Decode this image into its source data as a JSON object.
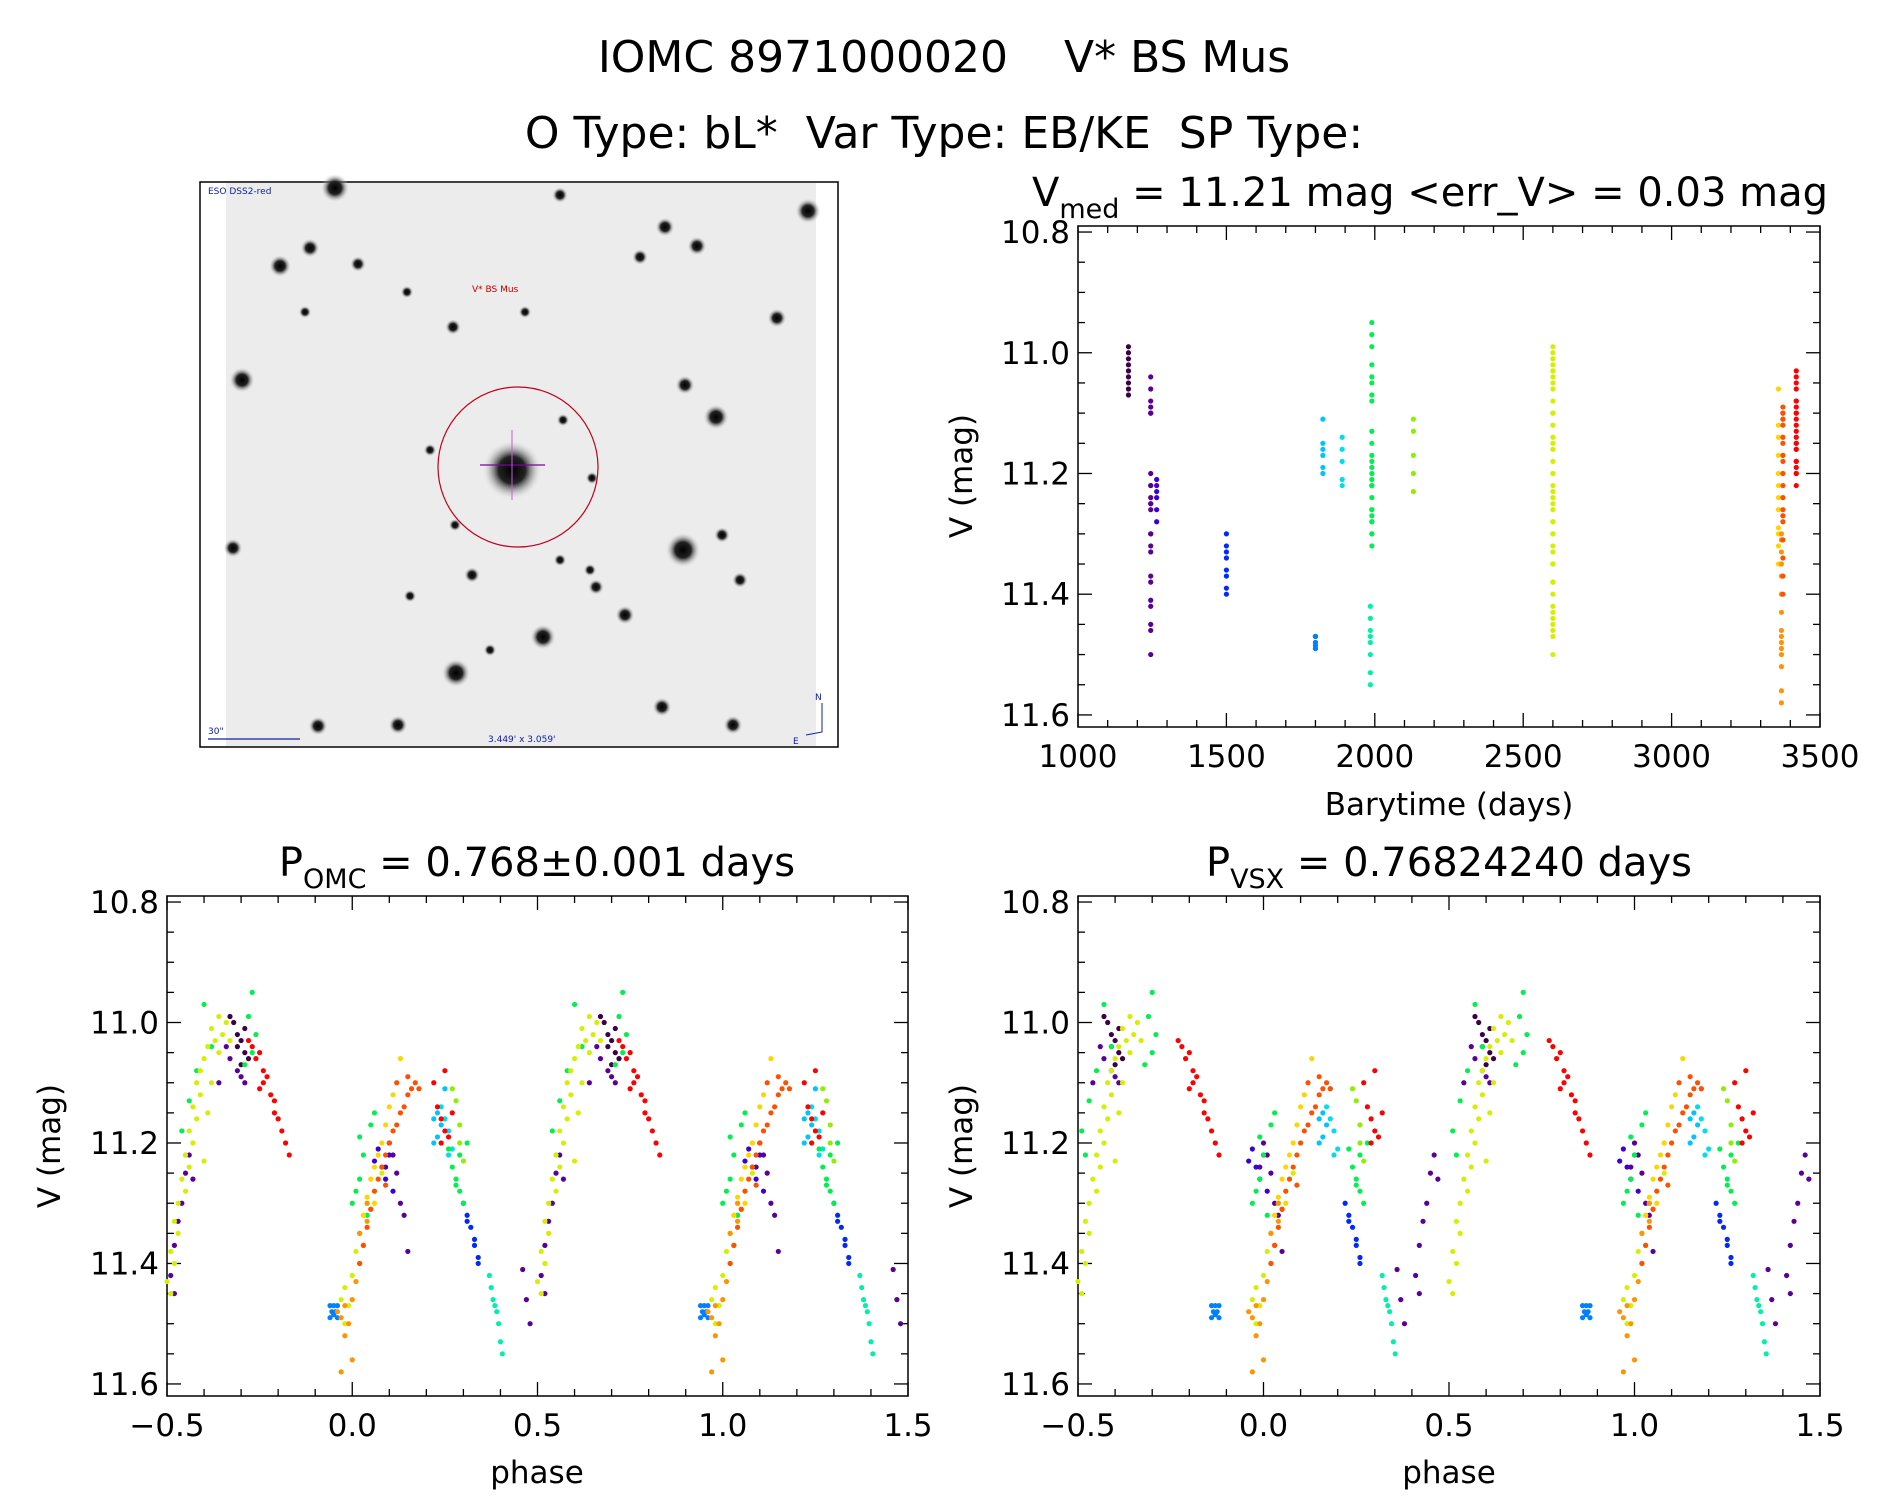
{
  "header": {
    "line1": "IOMC 8971000020    V* BS Mus",
    "line2": "O Type: bL*  Var Type: EB/KE  SP Type:"
  },
  "image_panel": {
    "survey_label": "ESO DSS2-red",
    "target_label": "V* BS Mus",
    "scale_label": "30\"",
    "fov_label": "3.449' x 3.059'",
    "north_label": "N",
    "east_label": "E"
  },
  "chart_data": [
    {
      "type": "scatter",
      "id": "lightcurve",
      "title_main": "V",
      "title_sub": "med",
      "title_rest": " = 11.21 mag <err_V> = 0.03 mag",
      "xlabel": "Barytime (days)",
      "ylabel": "V (mag)",
      "xlim": [
        1000,
        3500
      ],
      "ylim": [
        10.79,
        11.62
      ],
      "y_inverted": true,
      "xticks": [
        "1000",
        "1500",
        "2000",
        "2500",
        "3000",
        "3500"
      ],
      "yticks": [
        "10.8",
        "11.0",
        "11.2",
        "11.4",
        "11.6"
      ]
    },
    {
      "type": "scatter",
      "id": "phase_omc",
      "title_main": "P",
      "title_sub": "OMC",
      "title_rest": " = 0.768±0.001 days",
      "xlabel": "phase",
      "ylabel": "V (mag)",
      "xlim": [
        -0.5,
        1.5
      ],
      "ylim": [
        10.79,
        11.62
      ],
      "y_inverted": true,
      "xticks": [
        "−0.5",
        "0.0",
        "0.5",
        "1.0",
        "1.5"
      ],
      "yticks": [
        "10.8",
        "11.0",
        "11.2",
        "11.4",
        "11.6"
      ]
    },
    {
      "type": "scatter",
      "id": "phase_vsx",
      "title_main": "P",
      "title_sub": "VSX",
      "title_rest": " = 0.76824240 days",
      "xlabel": "phase",
      "ylabel": "V (mag)",
      "xlim": [
        -0.5,
        1.5
      ],
      "ylim": [
        10.79,
        11.62
      ],
      "y_inverted": true,
      "xticks": [
        "−0.5",
        "0.0",
        "0.5",
        "1.0",
        "1.5"
      ],
      "yticks": [
        "10.8",
        "11.0",
        "11.2",
        "11.4",
        "11.6"
      ]
    }
  ],
  "seasons": [
    {
      "color": "#3c0048",
      "time": 1170,
      "vsx_shift": -0.1,
      "points": [
        [
          -0.33,
          10.99
        ],
        [
          -0.32,
          11.0
        ],
        [
          -0.31,
          11.02
        ],
        [
          -0.3,
          11.03
        ],
        [
          -0.31,
          11.04
        ],
        [
          -0.29,
          11.05
        ],
        [
          -0.28,
          11.06
        ],
        [
          -0.3,
          11.07
        ],
        [
          -0.29,
          11.01
        ]
      ]
    },
    {
      "color": "#5a0096",
      "time": 1245,
      "vsx_shift": -0.1,
      "points": [
        [
          -0.34,
          11.04
        ],
        [
          -0.33,
          11.06
        ],
        [
          -0.31,
          11.08
        ],
        [
          -0.3,
          11.09
        ],
        [
          -0.29,
          11.1
        ],
        [
          -0.44,
          11.22
        ],
        [
          -0.45,
          11.25
        ],
        [
          -0.46,
          11.3
        ],
        [
          -0.47,
          11.33
        ],
        [
          -0.48,
          11.37
        ],
        [
          -0.49,
          11.42
        ],
        [
          -0.48,
          11.45
        ],
        [
          -0.43,
          11.26
        ],
        [
          0.1,
          11.2
        ],
        [
          0.11,
          11.22
        ],
        [
          0.12,
          11.25
        ],
        [
          0.13,
          11.3
        ],
        [
          0.14,
          11.32
        ],
        [
          0.09,
          11.24
        ],
        [
          0.15,
          11.38
        ],
        [
          0.47,
          11.46
        ],
        [
          0.48,
          11.5
        ],
        [
          0.46,
          11.41
        ],
        [
          -0.36,
          11.1
        ]
      ]
    },
    {
      "color": "#3a00d8",
      "time": 1265,
      "vsx_shift": -0.1,
      "points": [
        [
          0.06,
          11.23
        ],
        [
          0.07,
          11.21
        ],
        [
          0.08,
          11.24
        ],
        [
          0.09,
          11.26
        ],
        [
          0.1,
          11.22
        ],
        [
          0.11,
          11.28
        ]
      ]
    },
    {
      "color": "#0028ff",
      "time": 1500,
      "vsx_shift": -0.08,
      "points": [
        [
          0.3,
          11.3
        ],
        [
          0.31,
          11.32
        ],
        [
          0.31,
          11.33
        ],
        [
          0.32,
          11.34
        ],
        [
          0.33,
          11.36
        ],
        [
          0.33,
          11.37
        ],
        [
          0.34,
          11.39
        ],
        [
          0.34,
          11.4
        ]
      ]
    },
    {
      "color": "#0080ff",
      "time": 1800,
      "vsx_shift": -0.08,
      "points": [
        [
          -0.06,
          11.47
        ],
        [
          -0.055,
          11.48
        ],
        [
          -0.05,
          11.47
        ],
        [
          -0.045,
          11.48
        ],
        [
          -0.04,
          11.49
        ],
        [
          -0.05,
          11.485
        ],
        [
          -0.06,
          11.49
        ],
        [
          -0.04,
          11.47
        ]
      ]
    },
    {
      "color": "#00c4ff",
      "time": 1825,
      "vsx_shift": -0.07,
      "points": [
        [
          0.22,
          11.16
        ],
        [
          0.23,
          11.15
        ],
        [
          0.24,
          11.17
        ],
        [
          0.25,
          11.11
        ],
        [
          0.23,
          11.19
        ],
        [
          0.22,
          11.2
        ]
      ]
    },
    {
      "color": "#00dcf0",
      "time": 1890,
      "vsx_shift": -0.07,
      "points": [
        [
          0.24,
          11.14
        ],
        [
          0.25,
          11.16
        ],
        [
          0.26,
          11.18
        ],
        [
          0.26,
          11.22
        ],
        [
          0.27,
          11.21
        ]
      ]
    },
    {
      "color": "#00f0a8",
      "time": 1985,
      "vsx_shift": -0.05,
      "points": [
        [
          0.37,
          11.42
        ],
        [
          0.375,
          11.44
        ],
        [
          0.38,
          11.46
        ],
        [
          0.385,
          11.47
        ],
        [
          0.39,
          11.48
        ],
        [
          0.395,
          11.5
        ],
        [
          0.4,
          11.53
        ],
        [
          0.405,
          11.55
        ]
      ]
    },
    {
      "color": "#00f050",
      "time": 1990,
      "vsx_shift": -0.03,
      "points": [
        [
          -0.4,
          10.97
        ],
        [
          -0.38,
          11.04
        ],
        [
          -0.27,
          10.95
        ],
        [
          -0.28,
          10.99
        ],
        [
          -0.26,
          11.02
        ],
        [
          -0.27,
          11.05
        ],
        [
          -0.29,
          11.07
        ],
        [
          -0.42,
          11.08
        ],
        [
          -0.44,
          11.13
        ],
        [
          -0.46,
          11.18
        ],
        [
          -0.45,
          11.22
        ],
        [
          0.0,
          11.3
        ],
        [
          0.01,
          11.28
        ],
        [
          0.02,
          11.26
        ],
        [
          0.03,
          11.22
        ],
        [
          0.02,
          11.19
        ],
        [
          0.05,
          11.17
        ],
        [
          0.06,
          11.15
        ],
        [
          0.04,
          11.32
        ],
        [
          0.26,
          11.21
        ],
        [
          0.27,
          11.24
        ],
        [
          0.28,
          11.26
        ],
        [
          0.29,
          11.28
        ],
        [
          0.3,
          11.3
        ],
        [
          0.29,
          11.22
        ],
        [
          0.31,
          11.2
        ],
        [
          0.28,
          11.27
        ]
      ]
    },
    {
      "color": "#8cf000",
      "time": 2130,
      "vsx_shift": -0.03,
      "points": [
        [
          0.27,
          11.11
        ],
        [
          0.28,
          11.13
        ],
        [
          0.29,
          11.17
        ],
        [
          0.29,
          11.2
        ],
        [
          0.3,
          11.23
        ]
      ]
    },
    {
      "color": "#d4f000",
      "time": 2600,
      "vsx_shift": 0.0,
      "points": [
        [
          -0.36,
          10.99
        ],
        [
          -0.38,
          11.01
        ],
        [
          -0.37,
          11.03
        ],
        [
          -0.36,
          11.05
        ],
        [
          -0.39,
          11.04
        ],
        [
          -0.35,
          11.02
        ],
        [
          -0.4,
          11.06
        ],
        [
          -0.41,
          11.08
        ],
        [
          -0.42,
          11.1
        ],
        [
          -0.41,
          11.12
        ],
        [
          -0.43,
          11.14
        ],
        [
          -0.42,
          11.16
        ],
        [
          -0.44,
          11.18
        ],
        [
          -0.43,
          11.2
        ],
        [
          -0.45,
          11.22
        ],
        [
          -0.44,
          11.24
        ],
        [
          -0.46,
          11.26
        ],
        [
          -0.45,
          11.28
        ],
        [
          -0.47,
          11.3
        ],
        [
          -0.48,
          11.33
        ],
        [
          -0.47,
          11.35
        ],
        [
          -0.49,
          11.38
        ],
        [
          -0.48,
          11.4
        ],
        [
          -0.49,
          11.45
        ],
        [
          -0.5,
          11.43
        ],
        [
          -0.4,
          11.23
        ],
        [
          -0.39,
          11.15
        ],
        [
          -0.38,
          11.1
        ],
        [
          -0.34,
          11.0
        ],
        [
          -0.33,
          11.03
        ],
        [
          -0.02,
          11.5
        ],
        [
          -0.01,
          11.47
        ],
        [
          -0.02,
          11.44
        ],
        [
          0.0,
          11.42
        ],
        [
          0.01,
          11.38
        ],
        [
          0.02,
          11.35
        ],
        [
          0.03,
          11.32
        ],
        [
          -0.03,
          11.46
        ],
        [
          0.04,
          11.3
        ],
        [
          0.06,
          11.28
        ],
        [
          0.08,
          11.25
        ]
      ]
    },
    {
      "color": "#ffd400",
      "time": 3360,
      "vsx_shift": 0.0,
      "points": [
        [
          0.02,
          11.35
        ],
        [
          0.03,
          11.32
        ],
        [
          0.04,
          11.29
        ],
        [
          0.05,
          11.26
        ],
        [
          0.06,
          11.24
        ],
        [
          0.07,
          11.22
        ],
        [
          0.08,
          11.2
        ],
        [
          0.09,
          11.17
        ],
        [
          0.1,
          11.14
        ],
        [
          0.11,
          11.12
        ],
        [
          0.13,
          11.06
        ],
        [
          0.06,
          11.3
        ]
      ]
    },
    {
      "color": "#ff9400",
      "time": 3370,
      "vsx_shift": 0.0,
      "points": [
        [
          -0.03,
          11.58
        ],
        [
          -0.02,
          11.52
        ],
        [
          -0.01,
          11.5
        ],
        [
          -0.03,
          11.49
        ],
        [
          0.0,
          11.46
        ],
        [
          -0.02,
          11.47
        ],
        [
          0.01,
          11.43
        ],
        [
          0.02,
          11.4
        ],
        [
          0.03,
          11.37
        ],
        [
          0.02,
          11.35
        ],
        [
          0.04,
          11.33
        ],
        [
          0.05,
          11.31
        ],
        [
          0.04,
          11.3
        ],
        [
          -0.04,
          11.48
        ],
        [
          0.0,
          11.56
        ]
      ]
    },
    {
      "color": "#ff5000",
      "time": 3375,
      "vsx_shift": 0.0,
      "points": [
        [
          0.02,
          11.4
        ],
        [
          0.03,
          11.37
        ],
        [
          0.04,
          11.34
        ],
        [
          0.05,
          11.31
        ],
        [
          0.06,
          11.28
        ],
        [
          0.07,
          11.26
        ],
        [
          0.08,
          11.24
        ],
        [
          0.09,
          11.22
        ],
        [
          0.1,
          11.2
        ],
        [
          0.11,
          11.18
        ],
        [
          0.12,
          11.17
        ],
        [
          0.13,
          11.15
        ],
        [
          0.14,
          11.14
        ],
        [
          0.15,
          11.12
        ],
        [
          0.16,
          11.11
        ],
        [
          0.17,
          11.1
        ],
        [
          0.18,
          11.11
        ],
        [
          0.12,
          11.1
        ],
        [
          0.09,
          11.27
        ],
        [
          0.15,
          11.09
        ]
      ]
    },
    {
      "color": "#ff0000",
      "time": 3420,
      "vsx_shift": 0.05,
      "points": [
        [
          -0.28,
          11.03
        ],
        [
          -0.27,
          11.04
        ],
        [
          -0.26,
          11.06
        ],
        [
          -0.25,
          11.05
        ],
        [
          -0.24,
          11.08
        ],
        [
          -0.23,
          11.09
        ],
        [
          -0.24,
          11.1
        ],
        [
          -0.22,
          11.12
        ],
        [
          -0.21,
          11.13
        ],
        [
          -0.21,
          11.15
        ],
        [
          -0.2,
          11.16
        ],
        [
          -0.19,
          11.18
        ],
        [
          -0.18,
          11.2
        ],
        [
          -0.17,
          11.22
        ],
        [
          -0.25,
          11.11
        ],
        [
          0.22,
          11.1
        ],
        [
          0.23,
          11.14
        ],
        [
          0.24,
          11.16
        ],
        [
          0.25,
          11.18
        ],
        [
          0.26,
          11.19
        ],
        [
          0.27,
          11.15
        ],
        [
          0.24,
          11.2
        ],
        [
          0.25,
          11.08
        ]
      ]
    }
  ]
}
